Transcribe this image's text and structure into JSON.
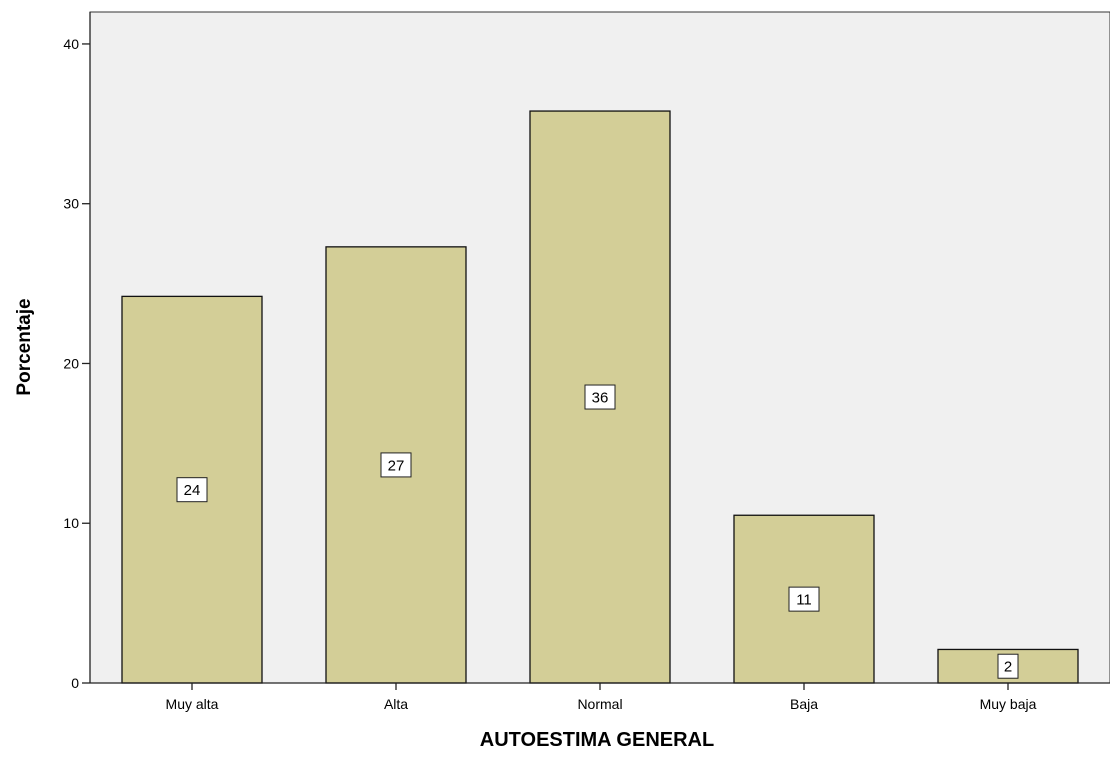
{
  "chart_data": {
    "type": "bar",
    "title": "",
    "xlabel": "AUTOESTIMA GENERAL",
    "ylabel": "Porcentaje",
    "categories": [
      "Muy alta",
      "Alta",
      "Normal",
      "Baja",
      "Muy baja"
    ],
    "values": [
      24.2,
      27.3,
      35.8,
      10.5,
      2.1
    ],
    "data_labels": [
      "24",
      "27",
      "36",
      "11",
      "2"
    ],
    "ylim": [
      0,
      42
    ],
    "yticks": [
      0,
      10,
      20,
      30,
      40
    ],
    "grid": false,
    "legend": "none",
    "colors": {
      "plot_background": "#F0F0F0",
      "bar_fill": "#D3CE97",
      "bar_stroke": "#111111",
      "label_box": "#FFFFFF",
      "text": "#000000"
    }
  }
}
